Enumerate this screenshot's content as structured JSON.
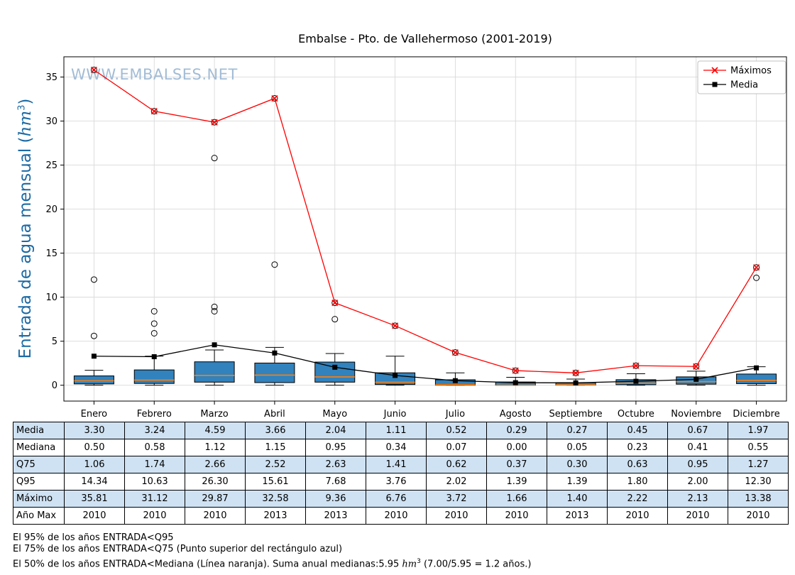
{
  "title": "Embalse - Pto. de Vallehermoso (2001-2019)",
  "watermark": "WWW.EMBALSES.NET",
  "ylabel": {
    "pre": "Entrada de agua mensual (",
    "math": "hm",
    "sup": "3",
    "post": ")"
  },
  "legend": {
    "maximos": "Máximos",
    "media": "Media"
  },
  "colors": {
    "box_fill": "#3182bd",
    "box_edge": "#000000",
    "median_line": "#ff7f0e",
    "maximos_line": "#ff0000",
    "media_line": "#000000",
    "grid": "#d9d9d9",
    "watermark": "#a2bcd6",
    "ylabel": "#1b6aa5",
    "table_shade": "#cfe2f3",
    "legend_border": "#c0c0c0"
  },
  "chart_data": {
    "type": "boxplot_with_lines",
    "title": "Embalse - Pto. de Vallehermoso (2001-2019)",
    "ylabel": "Entrada de agua mensual (hm³)",
    "grid": true,
    "legend_position": "upper right",
    "categories": [
      "Enero",
      "Febrero",
      "Marzo",
      "Abril",
      "Mayo",
      "Junio",
      "Julio",
      "Agosto",
      "Septiembre",
      "Octubre",
      "Noviembre",
      "Diciembre"
    ],
    "yticks": [
      0,
      5,
      10,
      15,
      20,
      25,
      30,
      35
    ],
    "ylim": [
      -1.8,
      37.3
    ],
    "series": [
      {
        "name": "Máximos",
        "type": "line",
        "marker": "x",
        "color": "#ff0000",
        "values": [
          35.81,
          31.12,
          29.87,
          32.58,
          9.36,
          6.76,
          3.72,
          1.66,
          1.4,
          2.22,
          2.13,
          13.38
        ]
      },
      {
        "name": "Media",
        "type": "line",
        "marker": "square",
        "color": "#000000",
        "values": [
          3.3,
          3.24,
          4.59,
          3.66,
          2.04,
          1.11,
          0.52,
          0.29,
          0.27,
          0.45,
          0.67,
          1.97
        ]
      }
    ],
    "boxes": {
      "median": [
        0.5,
        0.58,
        1.12,
        1.15,
        0.95,
        0.34,
        0.07,
        0.0,
        0.05,
        0.23,
        0.41,
        0.55
      ],
      "q75": [
        1.06,
        1.74,
        2.66,
        2.52,
        2.63,
        1.41,
        0.62,
        0.37,
        0.3,
        0.63,
        0.95,
        1.27
      ],
      "q25_est": [
        0.15,
        0.2,
        0.35,
        0.3,
        0.35,
        0.08,
        0.01,
        0.0,
        0.01,
        0.06,
        0.12,
        0.18
      ],
      "whisker_high_est": [
        1.7,
        3.3,
        4.0,
        4.3,
        3.6,
        3.3,
        1.4,
        0.9,
        0.7,
        1.3,
        1.6,
        2.1
      ],
      "whisker_low": [
        0,
        0,
        0,
        0,
        0,
        0,
        0,
        0,
        0,
        0,
        0,
        0
      ],
      "outliers": [
        [
          5.6,
          12.0,
          35.81
        ],
        [
          5.9,
          7.0,
          8.4,
          31.12
        ],
        [
          8.4,
          8.9,
          25.8,
          29.87
        ],
        [
          13.7,
          32.58
        ],
        [
          7.5,
          9.36
        ],
        [
          6.76
        ],
        [
          3.72
        ],
        [
          1.66
        ],
        [
          1.4
        ],
        [
          2.22
        ],
        [
          2.13
        ],
        [
          12.2,
          13.38
        ]
      ]
    }
  },
  "table": {
    "rows": [
      {
        "label": "Media",
        "values": [
          "3.30",
          "3.24",
          "4.59",
          "3.66",
          "2.04",
          "1.11",
          "0.52",
          "0.29",
          "0.27",
          "0.45",
          "0.67",
          "1.97"
        ]
      },
      {
        "label": "Mediana",
        "values": [
          "0.50",
          "0.58",
          "1.12",
          "1.15",
          "0.95",
          "0.34",
          "0.07",
          "0.00",
          "0.05",
          "0.23",
          "0.41",
          "0.55"
        ]
      },
      {
        "label": "Q75",
        "values": [
          "1.06",
          "1.74",
          "2.66",
          "2.52",
          "2.63",
          "1.41",
          "0.62",
          "0.37",
          "0.30",
          "0.63",
          "0.95",
          "1.27"
        ]
      },
      {
        "label": "Q95",
        "values": [
          "14.34",
          "10.63",
          "26.30",
          "15.61",
          "7.68",
          "3.76",
          "2.02",
          "1.39",
          "1.39",
          "1.80",
          "2.00",
          "12.30"
        ]
      },
      {
        "label": "Máximo",
        "values": [
          "35.81",
          "31.12",
          "29.87",
          "32.58",
          "9.36",
          "6.76",
          "3.72",
          "1.66",
          "1.40",
          "2.22",
          "2.13",
          "13.38"
        ]
      },
      {
        "label": "Año Max",
        "values": [
          "2010",
          "2010",
          "2010",
          "2013",
          "2013",
          "2010",
          "2010",
          "2010",
          "2013",
          "2010",
          "2010",
          "2010"
        ]
      }
    ]
  },
  "footnotes": {
    "line1": "El 95% de los años ENTRADA<Q95",
    "line2": "El 75% de los años ENTRADA<Q75 (Punto superior del rectángulo azul)",
    "line3_pre": "El 50% de los años ENTRADA<Mediana (Línea naranja). Suma anual medianas:5.95 ",
    "line3_math": "hm",
    "line3_sup": "3",
    "line3_post": " (7.00/5.95 = 1.2 años.)"
  }
}
